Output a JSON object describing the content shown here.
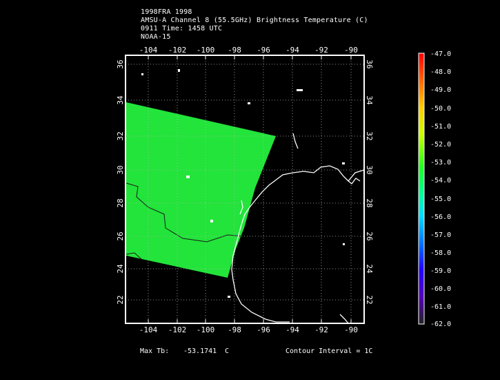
{
  "header": {
    "line1": "1998FRA 1998",
    "line2": "AMSU-A Channel 8 (55.5GHz) Brightness Temperature (C)",
    "line3": "0911 Time: 1458 UTC",
    "line4": "NOAA-15"
  },
  "map": {
    "lon_ticks": [
      "-104",
      "-102",
      "-100",
      "-98",
      "-96",
      "-94",
      "-92",
      "-90"
    ],
    "lat_ticks": [
      "36",
      "34",
      "32",
      "30",
      "28",
      "26",
      "24",
      "22"
    ],
    "swath_color": "#22e43a",
    "contour_color": "#1a1a1a",
    "grid": "dotted",
    "coastline_color": "#ffffff"
  },
  "colorbar": {
    "labels": [
      "-47.0",
      "-48.0",
      "-49.0",
      "-50.0",
      "-51.0",
      "-52.0",
      "-53.0",
      "-54.0",
      "-55.0",
      "-56.0",
      "-57.0",
      "-58.0",
      "-59.0",
      "-60.0",
      "-61.0",
      "-62.0"
    ],
    "colors": [
      "#ff0000",
      "#ff4400",
      "#ff8800",
      "#ffbb00",
      "#ffee00",
      "#ccff00",
      "#66ff00",
      "#00ff22",
      "#00ff99",
      "#00eeff",
      "#00aaff",
      "#0066ff",
      "#2200ff",
      "#5500cc",
      "#440088",
      "#222222"
    ]
  },
  "footer": {
    "max_label": "Max Tb:",
    "max_value": "-53.1741",
    "max_unit": "C",
    "contour_label": "Contour Interval = 1C"
  }
}
